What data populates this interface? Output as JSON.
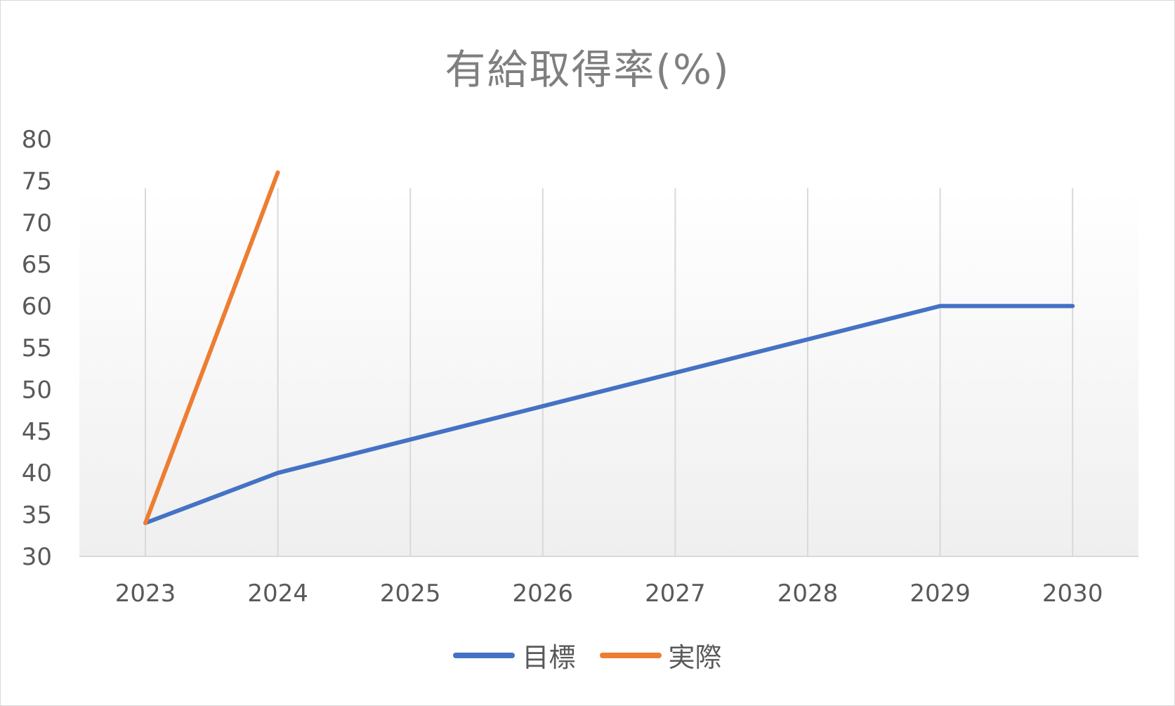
{
  "chart_data": {
    "type": "line",
    "title": "有給取得率(%)",
    "xlabel": "",
    "ylabel": "",
    "categories": [
      "2023",
      "2024",
      "2025",
      "2026",
      "2027",
      "2028",
      "2029",
      "2030"
    ],
    "ylim": [
      30,
      80
    ],
    "yticks": [
      30,
      35,
      40,
      45,
      50,
      55,
      60,
      65,
      70,
      75,
      80
    ],
    "grid": "vertical",
    "legend": "bottom",
    "series": [
      {
        "name": "目標",
        "color": "#4472c4",
        "values": [
          34,
          40,
          44,
          48,
          52,
          56,
          60,
          60
        ]
      },
      {
        "name": "実際",
        "color": "#ed7d31",
        "values": [
          34,
          76,
          null,
          null,
          null,
          null,
          null,
          null
        ]
      }
    ]
  }
}
